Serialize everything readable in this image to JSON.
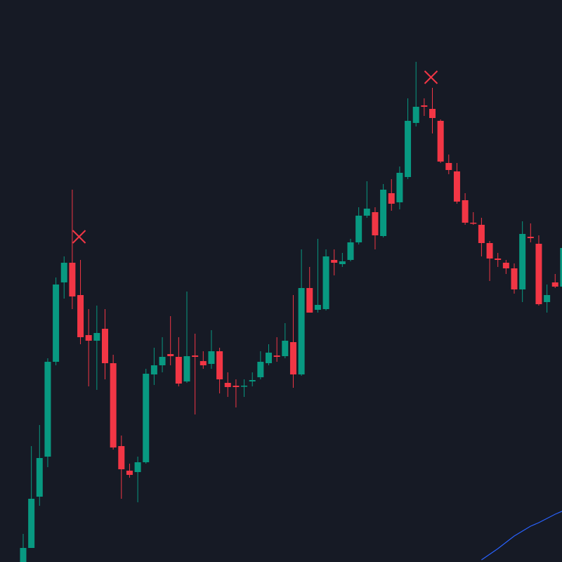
{
  "chart_data": {
    "type": "candlestick",
    "categories": [
      null,
      null,
      null,
      null,
      null,
      null,
      null,
      null,
      null,
      null,
      null,
      null,
      null,
      null,
      null,
      null,
      null,
      null,
      null,
      null,
      null,
      null,
      null,
      null,
      null,
      null,
      null,
      null,
      null,
      null,
      null,
      null,
      null,
      null,
      null,
      null,
      null,
      null,
      null,
      null,
      null,
      null,
      null,
      null,
      null,
      null,
      null,
      null,
      null,
      null,
      null,
      null,
      null,
      null,
      null,
      null,
      null,
      null,
      null,
      null,
      null,
      null,
      null,
      null,
      null,
      null,
      null
    ],
    "open": [
      0,
      20,
      93,
      150,
      285,
      398,
      426,
      380,
      323,
      315,
      332,
      283,
      165,
      130,
      128,
      142,
      267,
      280,
      296,
      292,
      257,
      294,
      286,
      282,
      300,
      255,
      251,
      250,
      257,
      263,
      283,
      294,
      293,
      313,
      267,
      390,
      359,
      360,
      430,
      424,
      430,
      455,
      493,
      498,
      464,
      525,
      512,
      548,
      625,
      650,
      645,
      628,
      568,
      556,
      515,
      483,
      480,
      454,
      432,
      426,
      418,
      388,
      463,
      453,
      370,
      398,
      392
    ],
    "high": [
      40,
      165,
      195,
      290,
      405,
      435,
      530,
      430,
      360,
      365,
      360,
      295,
      180,
      140,
      150,
      275,
      305,
      320,
      350,
      320,
      385,
      325,
      300,
      330,
      305,
      270,
      260,
      260,
      270,
      300,
      310,
      320,
      340,
      380,
      445,
      420,
      460,
      445,
      445,
      440,
      460,
      505,
      542,
      505,
      538,
      545,
      563,
      660,
      712,
      660,
      675,
      630,
      580,
      568,
      525,
      498,
      490,
      457,
      440,
      430,
      425,
      485,
      482,
      465,
      395,
      410,
      470
    ],
    "low": [
      0,
      20,
      80,
      135,
      280,
      375,
      360,
      310,
      250,
      245,
      260,
      160,
      90,
      120,
      85,
      140,
      252,
      270,
      280,
      250,
      255,
      210,
      275,
      275,
      240,
      235,
      220,
      235,
      250,
      260,
      280,
      285,
      290,
      248,
      265,
      355,
      355,
      358,
      408,
      420,
      428,
      452,
      490,
      445,
      462,
      500,
      502,
      545,
      620,
      635,
      610,
      568,
      552,
      510,
      480,
      480,
      435,
      400,
      420,
      410,
      382,
      370,
      455,
      365,
      355,
      390,
      390
    ],
    "close": [
      20,
      90,
      148,
      285,
      395,
      426,
      378,
      320,
      315,
      326,
      283,
      163,
      132,
      124,
      142,
      268,
      280,
      292,
      293,
      254,
      293,
      292,
      280,
      300,
      260,
      249,
      249,
      251,
      259,
      285,
      298,
      292,
      315,
      267,
      390,
      355,
      366,
      435,
      426,
      428,
      455,
      493,
      503,
      465,
      530,
      510,
      554,
      628,
      648,
      648,
      632,
      570,
      558,
      513,
      483,
      482,
      454,
      432,
      430,
      418,
      388,
      467,
      461,
      367,
      380,
      392,
      447
    ],
    "up_color": "#089981",
    "down_color": "#f23645",
    "ylim": [
      0,
      800
    ],
    "overlays": [
      {
        "kind": "line",
        "color": "#2962ff",
        "values": [
          null,
          null,
          null,
          null,
          null,
          null,
          null,
          null,
          null,
          null,
          null,
          null,
          null,
          null,
          null,
          null,
          null,
          null,
          null,
          null,
          null,
          null,
          null,
          null,
          null,
          null,
          null,
          null,
          null,
          null,
          null,
          null,
          null,
          null,
          null,
          null,
          null,
          null,
          null,
          null,
          null,
          null,
          null,
          null,
          null,
          null,
          null,
          null,
          null,
          null,
          null,
          null,
          null,
          null,
          null,
          null,
          3,
          11,
          19,
          28,
          37,
          44,
          51,
          56,
          62,
          68,
          73
        ]
      },
      {
        "kind": "cross",
        "color": "#f23645",
        "values": [
          null,
          null,
          null,
          null,
          null,
          null,
          null,
          463,
          null,
          null,
          null,
          null,
          null,
          null,
          null,
          null,
          null,
          null,
          null,
          null,
          null,
          null,
          null,
          null,
          null,
          null,
          null,
          null,
          null,
          null,
          null,
          null,
          null,
          null,
          null,
          null,
          null,
          null,
          null,
          null,
          null,
          null,
          null,
          null,
          null,
          null,
          null,
          null,
          null,
          null,
          690,
          null,
          null,
          null,
          null,
          null,
          null,
          null,
          null,
          null,
          null,
          null,
          null,
          null,
          null,
          null,
          null
        ]
      }
    ]
  }
}
